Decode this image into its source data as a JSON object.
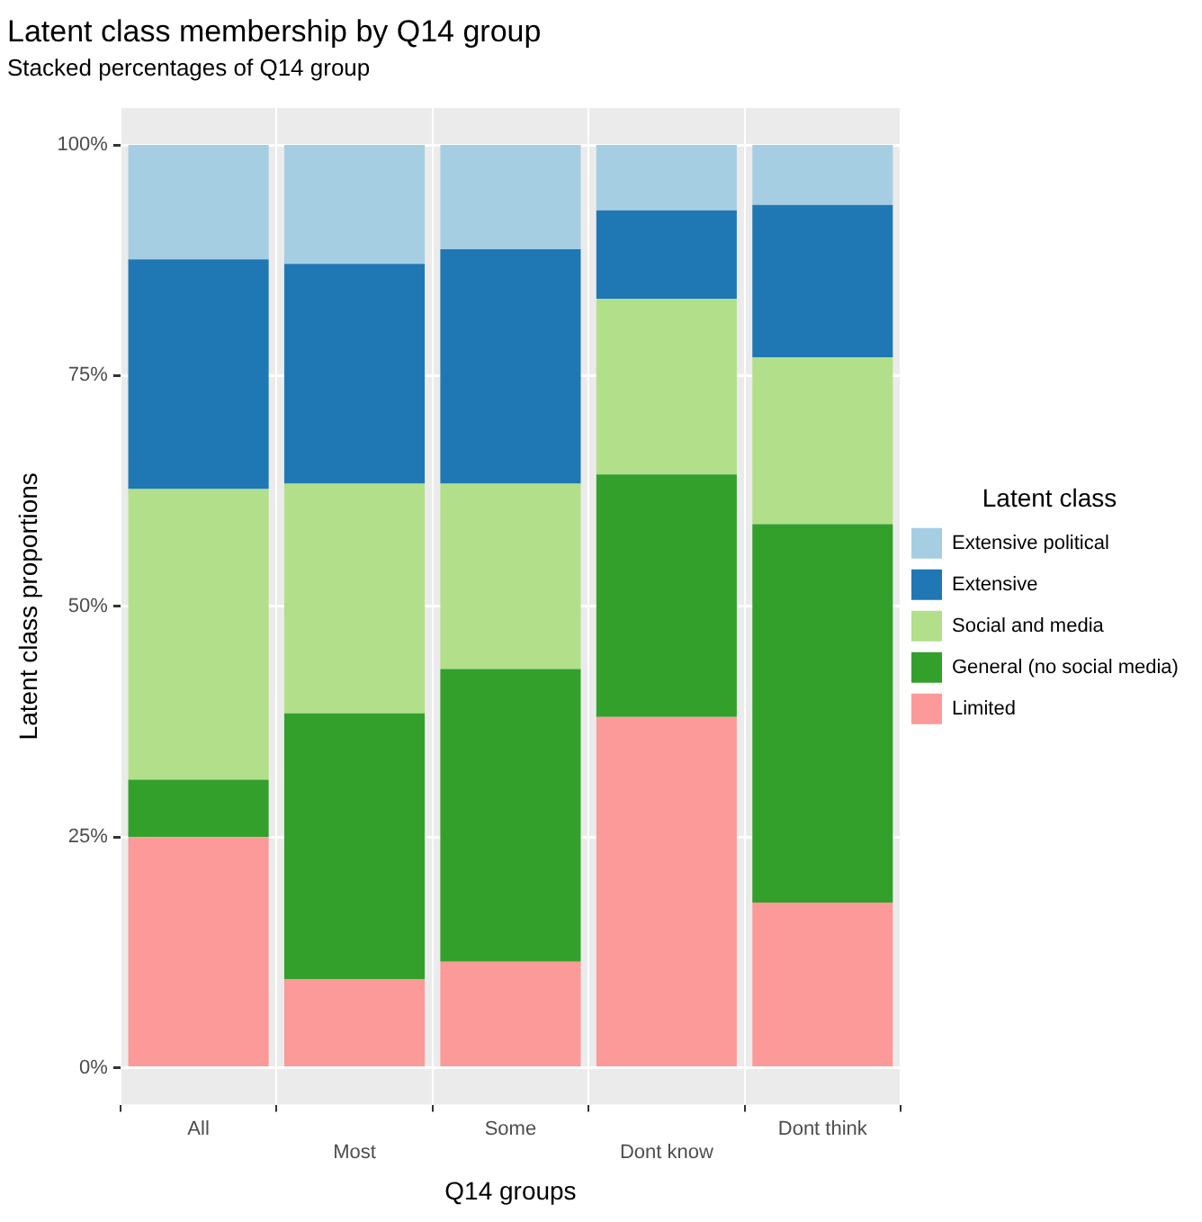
{
  "chart_data": {
    "type": "bar",
    "title": "Latent class membership by Q14 group",
    "subtitle": "Stacked percentages of Q14 group",
    "xlabel": "Q14 groups",
    "ylabel": "Latent class proportions",
    "legend_title": "Latent class",
    "categories": [
      "All",
      "Most",
      "Some",
      "Dont know",
      "Dont think"
    ],
    "stacked": true,
    "series": [
      {
        "name": "Limited",
        "color": "#fb9a99",
        "values": [
          25.0,
          9.6,
          11.5,
          38.0,
          17.9
        ]
      },
      {
        "name": "General (no social media)",
        "color": "#33a02c",
        "values": [
          6.2,
          28.8,
          31.7,
          26.3,
          41.0
        ]
      },
      {
        "name": "Social and media",
        "color": "#b2df8a",
        "values": [
          31.5,
          24.9,
          20.1,
          19.0,
          18.1
        ]
      },
      {
        "name": "Extensive",
        "color": "#1f78b4",
        "values": [
          24.9,
          23.8,
          25.4,
          9.6,
          16.5
        ]
      },
      {
        "name": "Extensive political",
        "color": "#a6cee3",
        "values": [
          12.4,
          12.9,
          11.3,
          7.1,
          6.5
        ]
      }
    ],
    "ylim": [
      -4,
      104
    ],
    "yticks": [
      {
        "value": 0,
        "label": "0%"
      },
      {
        "value": 25,
        "label": "25%"
      },
      {
        "value": 50,
        "label": "50%"
      },
      {
        "value": 75,
        "label": "75%"
      },
      {
        "value": 100,
        "label": "100%"
      }
    ],
    "grid": true,
    "legend": "right"
  }
}
